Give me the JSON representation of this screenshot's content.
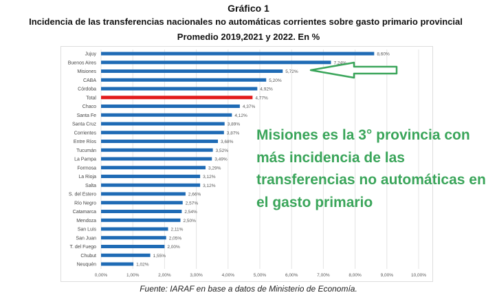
{
  "chart_data": {
    "type": "bar",
    "title": "Gráfico 1",
    "subtitle": "Incidencia de las transferencias nacionales no automáticas corrientes sobre gasto primario provincial",
    "subtitle2": "Promedio 2019,2021 y 2022. En %",
    "categories": [
      "Jujuy",
      "Buenos Aires",
      "Misiones",
      "CABA",
      "Córdoba",
      "Total",
      "Chaco",
      "Santa Fe",
      "Santa Cruz",
      "Corrientes",
      "Entre Ríos",
      "Tucumán",
      "La Pampa",
      "Formosa",
      "La Rioja",
      "Salta",
      "S. del Estero",
      "Río Negro",
      "Catamarca",
      "Mendoza",
      "San Luis",
      "San Juan",
      "T. del Fuego",
      "Chubut",
      "Neuquén"
    ],
    "values": [
      8.6,
      7.24,
      5.72,
      5.2,
      4.92,
      4.77,
      4.37,
      4.12,
      3.89,
      3.87,
      3.68,
      3.52,
      3.49,
      3.29,
      3.12,
      3.12,
      2.66,
      2.57,
      2.54,
      2.5,
      2.11,
      2.05,
      2.0,
      1.55,
      1.02
    ],
    "value_labels": [
      "8,60%",
      "7,24%",
      "5,72%",
      "5,20%",
      "4,92%",
      "4,77%",
      "4,37%",
      "4,12%",
      "3,89%",
      "3,87%",
      "3,68%",
      "3,52%",
      "3,49%",
      "3,29%",
      "3,12%",
      "3,12%",
      "2,66%",
      "2,57%",
      "2,54%",
      "2,50%",
      "2,11%",
      "2,05%",
      "2,00%",
      "1,55%",
      "1,02%"
    ],
    "xlim": [
      0,
      10
    ],
    "xticks": [
      "0,00%",
      "1,00%",
      "2,00%",
      "3,00%",
      "4,00%",
      "5,00%",
      "6,00%",
      "7,00%",
      "8,00%",
      "9,00%",
      "10,00%"
    ],
    "highlight": "Total",
    "colors": {
      "bar": "#1f6bb5",
      "highlight": "#e31b1b",
      "annotation": "#3aa55a"
    },
    "grid": true
  },
  "annotation": "Misiones es la 3° provincia con más incidencia de las transferencias no automáticas en el gasto primario",
  "source": "Fuente: IARAF en base a datos de Ministerio de Economía."
}
